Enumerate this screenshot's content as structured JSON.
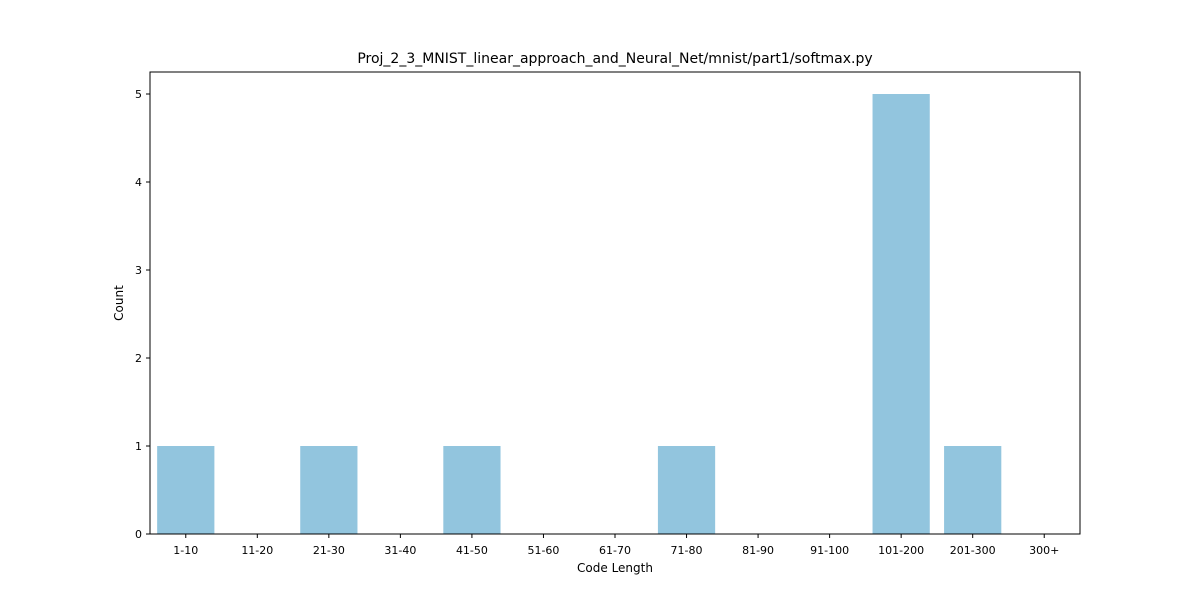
{
  "chart_data": {
    "type": "bar",
    "title": "Proj_2_3_MNIST_linear_approach_and_Neural_Net/mnist/part1/softmax.py",
    "xlabel": "Code Length",
    "ylabel": "Count",
    "categories": [
      "1-10",
      "11-20",
      "21-30",
      "31-40",
      "41-50",
      "51-60",
      "61-70",
      "71-80",
      "81-90",
      "91-100",
      "101-200",
      "201-300",
      "300+"
    ],
    "values": [
      1,
      0,
      1,
      0,
      1,
      0,
      0,
      1,
      0,
      0,
      5,
      1,
      0
    ],
    "ylim": [
      0,
      5.25
    ],
    "yticks": [
      0,
      1,
      2,
      3,
      4,
      5
    ],
    "grid": false,
    "bar_color": "#92c5de"
  }
}
